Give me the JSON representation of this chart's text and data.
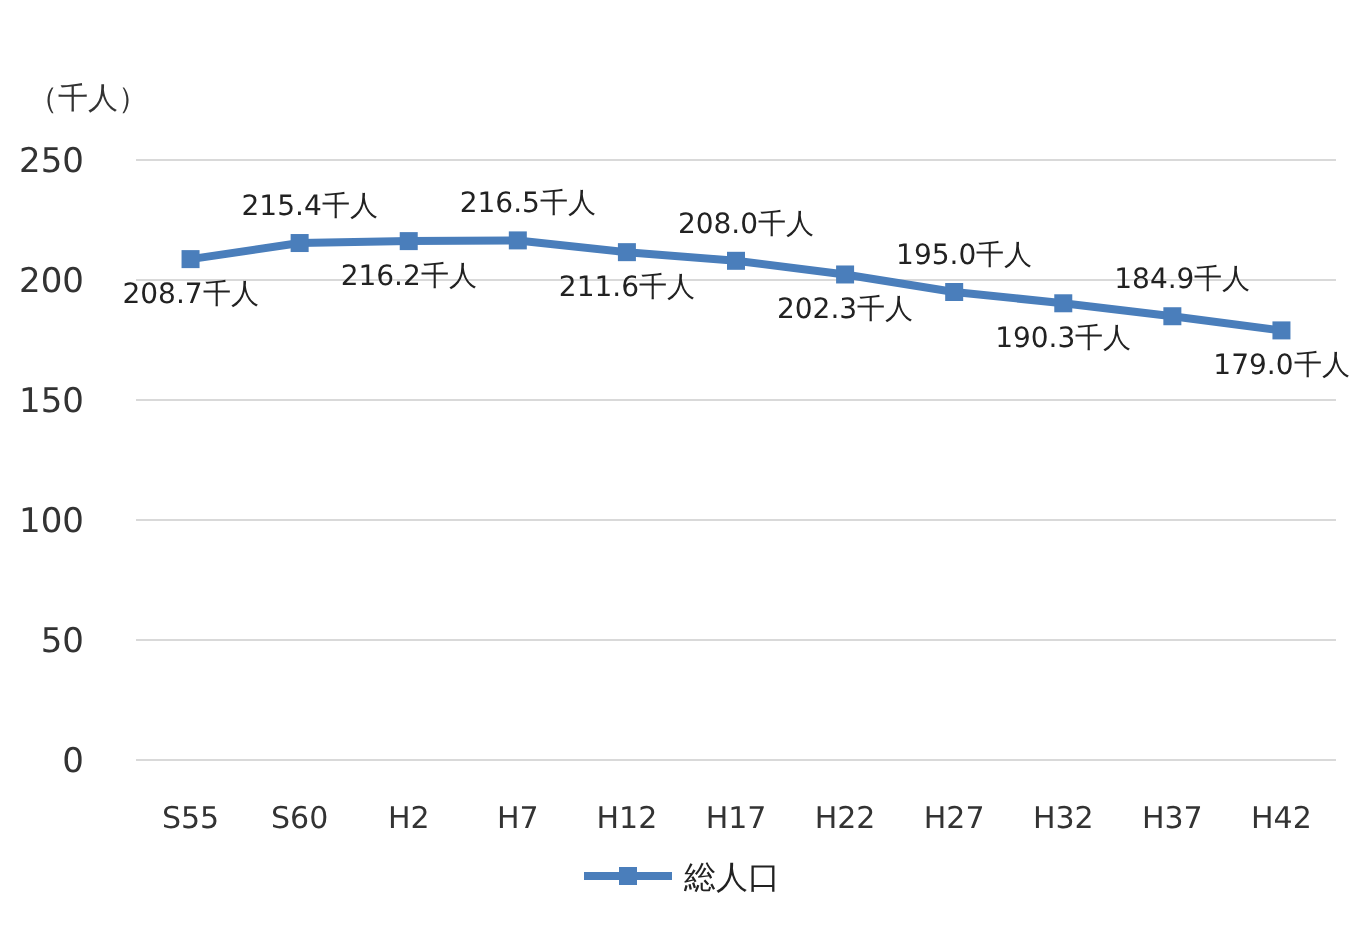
{
  "chart_data": {
    "type": "line",
    "ylabel": "（千人）",
    "categories": [
      "S55",
      "S60",
      "H2",
      "H7",
      "H12",
      "H17",
      "H22",
      "H27",
      "H32",
      "H37",
      "H42"
    ],
    "series": [
      {
        "name": "総人口",
        "color": "#4a7ebb",
        "values": [
          208.7,
          215.4,
          216.2,
          216.5,
          211.6,
          208.0,
          202.3,
          195.0,
          190.3,
          184.9,
          179.0
        ],
        "value_labels": [
          "208.7千人",
          "215.4千人",
          "216.2千人",
          "216.5千人",
          "211.6千人",
          "208.0千人",
          "202.3千人",
          "195.0千人",
          "190.3千人",
          "184.9千人",
          "179.0千人"
        ]
      }
    ],
    "ylim": [
      0,
      250
    ],
    "yticks": [
      0,
      50,
      100,
      150,
      200,
      250
    ],
    "grid": "y",
    "legend": "bottom",
    "marker": "square",
    "line_style": "solid"
  }
}
